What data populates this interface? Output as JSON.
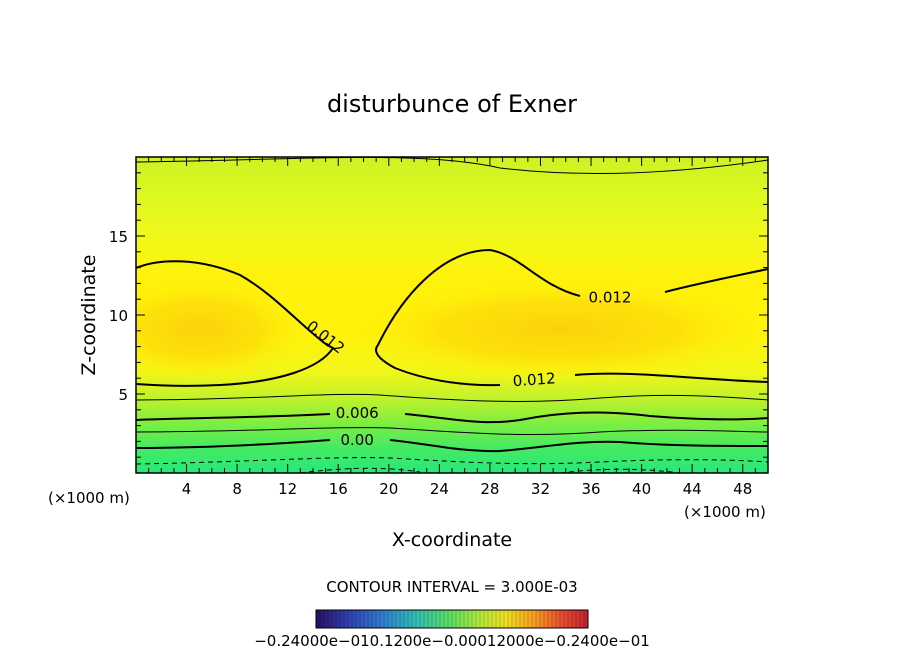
{
  "chart_data": {
    "type": "contour",
    "title": "disturbunce of Exner",
    "xlabel": "X-coordinate",
    "ylabel": "Z-coordinate",
    "x_unit": "(×1000 m)",
    "x_unit_right": "(×1000 m)",
    "xlim": [
      0,
      50
    ],
    "ylim": [
      0,
      20
    ],
    "x_ticks": [
      4,
      8,
      12,
      16,
      20,
      24,
      28,
      32,
      36,
      40,
      44,
      48
    ],
    "y_ticks": [
      5,
      10,
      15
    ],
    "contour_labels": [
      {
        "text": "0.012",
        "x": 15,
        "y": 8.6,
        "rotate": 38
      },
      {
        "text": "0.012",
        "x": 37.5,
        "y": 11.1,
        "rotate": 0
      },
      {
        "text": "0.012",
        "x": 31.5,
        "y": 5.9,
        "rotate": -4
      },
      {
        "text": "0.006",
        "x": 17.5,
        "y": 3.8,
        "rotate": 0
      },
      {
        "text": "0.00",
        "x": 17.5,
        "y": 2.1,
        "rotate": 0
      }
    ],
    "contour_interval_text": "CONTOUR INTERVAL = 3.000E-03",
    "colorbar_labels": "−0.24000e−010.1200e−0.00012000e−0.2400e−01",
    "colorbar_colors": [
      "#2a1060",
      "#3a2aa0",
      "#3060d0",
      "#30a0d0",
      "#30c0a0",
      "#40d070",
      "#70e050",
      "#a0e040",
      "#c8e830",
      "#e8f020",
      "#f8e010",
      "#f8b020",
      "#f07030",
      "#e04030",
      "#c02030"
    ],
    "grid": false,
    "legend": "none"
  }
}
